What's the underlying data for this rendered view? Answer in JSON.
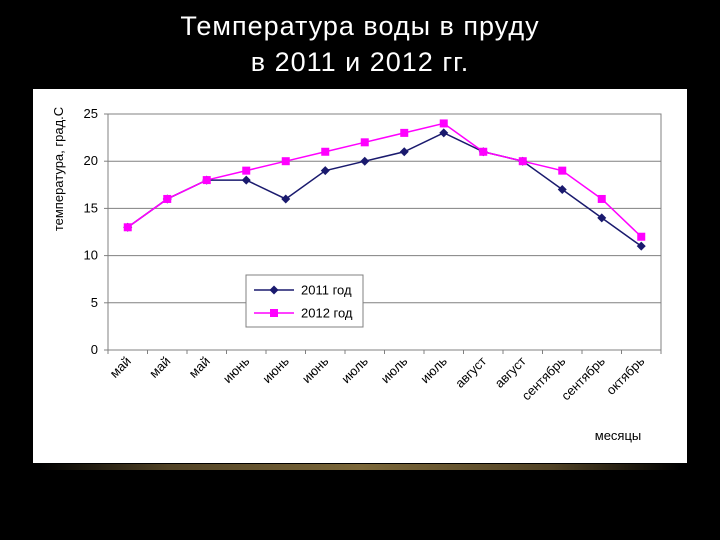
{
  "slide": {
    "title_line1": "Температура воды в пруду",
    "title_line2": "в 2011 и 2012 гг."
  },
  "chart_data": {
    "type": "line",
    "ylabel": "температура, град.С",
    "xlabel": "месяцы",
    "ylim": [
      0,
      25
    ],
    "yticks": [
      0,
      5,
      10,
      15,
      20,
      25
    ],
    "grid": "horizontal",
    "legend_position": "bottom-left",
    "categories": [
      "май",
      "май",
      "май",
      "июнь",
      "июнь",
      "июнь",
      "июль",
      "июль",
      "июль",
      "август",
      "август",
      "сентябрь",
      "сентябрь",
      "октябрь"
    ],
    "series": [
      {
        "name": "2011 год",
        "color": "#1a1a6e",
        "marker": "diamond",
        "values": [
          13,
          16,
          18,
          18,
          16,
          19,
          20,
          21,
          23,
          21,
          20,
          17,
          14,
          11
        ]
      },
      {
        "name": "2012 год",
        "color": "#ff00ff",
        "marker": "square",
        "values": [
          13,
          16,
          18,
          19,
          20,
          21,
          22,
          23,
          24,
          21,
          20,
          19,
          16,
          12
        ]
      }
    ]
  }
}
